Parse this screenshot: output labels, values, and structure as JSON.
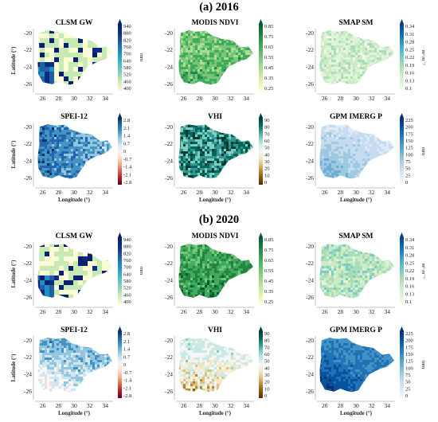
{
  "figure": {
    "sections": [
      {
        "label": "(a) 2016"
      },
      {
        "label": "(b) 2020"
      }
    ]
  },
  "chart_data": [
    {
      "year": "2016",
      "panels": [
        {
          "title": "CLSM GW",
          "type": "heatmap",
          "colorbar": {
            "ticks": [
              940,
              880,
              820,
              760,
              700,
              640,
              580,
              520,
              460,
              400
            ],
            "unit": "mm",
            "colors": [
              "#fbfbd6",
              "#c7e9b4",
              "#7fcdbb",
              "#41b6c4",
              "#1d91c0",
              "#225ea8",
              "#0c2c84",
              "#08206e"
            ]
          },
          "xlim": [
            25,
            35
          ],
          "ylim": [
            -27,
            -19.5
          ],
          "xticks": [
            26,
            28,
            30,
            32,
            34
          ],
          "yticks": [
            -20,
            -22,
            -24,
            -26
          ],
          "xlabel": "",
          "ylabel": "Latitude (°)"
        },
        {
          "title": "MODIS NDVI",
          "type": "heatmap",
          "colorbar": {
            "ticks": [
              0.85,
              0.75,
              0.65,
              0.55,
              0.45,
              0.35,
              0.25
            ],
            "unit": "",
            "colors": [
              "#ffffcc",
              "#d9f0a3",
              "#addd8e",
              "#78c679",
              "#41ab5d",
              "#238443",
              "#005a32"
            ]
          },
          "xlim": [
            25,
            35
          ],
          "ylim": [
            -27,
            -19.5
          ],
          "xticks": [
            26,
            28,
            30,
            32,
            34
          ],
          "yticks": [
            -20,
            -22,
            -24,
            -26
          ],
          "xlabel": "",
          "ylabel": ""
        },
        {
          "title": "SMAP SM",
          "type": "heatmap",
          "colorbar": {
            "ticks": [
              0.34,
              0.31,
              0.28,
              0.25,
              0.22,
              0.19,
              0.16,
              0.13,
              0.1
            ],
            "unit": "m³ m⁻³",
            "colors": [
              "#f7fcf0",
              "#e0f3db",
              "#ccebc5",
              "#a8ddb5",
              "#7bccc4",
              "#4eb3d3",
              "#2b8cbe",
              "#0868ac",
              "#084081"
            ]
          },
          "xlim": [
            25,
            35
          ],
          "ylim": [
            -27,
            -19.5
          ],
          "xticks": [
            26,
            28,
            30,
            32,
            34
          ],
          "yticks": [
            -20,
            -22,
            -24,
            -26
          ],
          "xlabel": "",
          "ylabel": ""
        },
        {
          "title": "SPEI-12",
          "type": "heatmap",
          "colorbar": {
            "ticks": [
              2.8,
              2.1,
              1.4,
              0.7,
              0.0,
              -0.7,
              -1.4,
              -2.1,
              -2.8
            ],
            "unit": "",
            "colors": [
              "#67001f",
              "#b2182b",
              "#d6604d",
              "#f4a582",
              "#fddbc7",
              "#f7f7f7",
              "#d1e5f0",
              "#92c5de",
              "#4393c3",
              "#2166ac",
              "#053061"
            ]
          },
          "xlim": [
            25,
            35
          ],
          "ylim": [
            -27,
            -19.5
          ],
          "xticks": [
            26,
            28,
            30,
            32,
            34
          ],
          "yticks": [
            -20,
            -22,
            -24,
            -26
          ],
          "xlabel": "Longitude (°)",
          "ylabel": "Latitude (°)"
        },
        {
          "title": "VHI",
          "type": "heatmap",
          "colorbar": {
            "ticks": [
              90,
              80,
              70,
              60,
              50,
              40,
              30,
              20,
              10,
              0
            ],
            "unit": "",
            "colors": [
              "#543005",
              "#8c510a",
              "#bf812d",
              "#dfc27d",
              "#f6e8c3",
              "#f5f5f5",
              "#c7eae5",
              "#80cdc1",
              "#35978f",
              "#01665e",
              "#003c30"
            ]
          },
          "xlim": [
            25,
            35
          ],
          "ylim": [
            -27,
            -19.5
          ],
          "xticks": [
            26,
            28,
            30,
            32,
            34
          ],
          "yticks": [
            -20,
            -22,
            -24,
            -26
          ],
          "xlabel": "Longitude (°)",
          "ylabel": ""
        },
        {
          "title": "GPM IMERG P",
          "type": "heatmap",
          "colorbar": {
            "ticks": [
              225,
              200,
              175,
              150,
              125,
              100,
              75,
              50,
              25,
              0
            ],
            "unit": "mm",
            "colors": [
              "#f7fbff",
              "#deebf7",
              "#c6dbef",
              "#9ecae1",
              "#6baed6",
              "#4292c6",
              "#2171b5",
              "#08519c",
              "#08306b"
            ]
          },
          "xlim": [
            25,
            35
          ],
          "ylim": [
            -27,
            -19.5
          ],
          "xticks": [
            26,
            28,
            30,
            32,
            34
          ],
          "yticks": [
            -20,
            -22,
            -24,
            -26
          ],
          "xlabel": "Longitude (°)",
          "ylabel": ""
        }
      ]
    },
    {
      "year": "2020",
      "panels": [
        {
          "title": "CLSM GW",
          "type": "heatmap",
          "colorbar": {
            "ticks": [
              940,
              880,
              820,
              760,
              700,
              640,
              580,
              520,
              460,
              400
            ],
            "unit": "mm",
            "colors": [
              "#fbfbd6",
              "#c7e9b4",
              "#7fcdbb",
              "#41b6c4",
              "#1d91c0",
              "#225ea8",
              "#0c2c84",
              "#08206e"
            ]
          },
          "xlim": [
            25,
            35
          ],
          "ylim": [
            -27,
            -19.5
          ],
          "xticks": [
            26,
            28,
            30,
            32,
            34
          ],
          "yticks": [
            -20,
            -22,
            -24,
            -26
          ],
          "xlabel": "",
          "ylabel": "Latitude (°)"
        },
        {
          "title": "MODIS NDVI",
          "type": "heatmap",
          "colorbar": {
            "ticks": [
              0.85,
              0.75,
              0.65,
              0.55,
              0.45,
              0.35,
              0.25
            ],
            "unit": "",
            "colors": [
              "#ffffcc",
              "#d9f0a3",
              "#addd8e",
              "#78c679",
              "#41ab5d",
              "#238443",
              "#005a32"
            ]
          },
          "xlim": [
            25,
            35
          ],
          "ylim": [
            -27,
            -19.5
          ],
          "xticks": [
            26,
            28,
            30,
            32,
            34
          ],
          "yticks": [
            -20,
            -22,
            -24,
            -26
          ],
          "xlabel": "",
          "ylabel": ""
        },
        {
          "title": "SMAP SM",
          "type": "heatmap",
          "colorbar": {
            "ticks": [
              0.34,
              0.31,
              0.28,
              0.25,
              0.22,
              0.19,
              0.16,
              0.13,
              0.1
            ],
            "unit": "m³ m⁻³",
            "colors": [
              "#f7fcf0",
              "#e0f3db",
              "#ccebc5",
              "#a8ddb5",
              "#7bccc4",
              "#4eb3d3",
              "#2b8cbe",
              "#0868ac",
              "#084081"
            ]
          },
          "xlim": [
            25,
            35
          ],
          "ylim": [
            -27,
            -19.5
          ],
          "xticks": [
            26,
            28,
            30,
            32,
            34
          ],
          "yticks": [
            -20,
            -22,
            -24,
            -26
          ],
          "xlabel": "",
          "ylabel": ""
        },
        {
          "title": "SPEI-12",
          "type": "heatmap",
          "colorbar": {
            "ticks": [
              2.8,
              2.1,
              1.4,
              0.7,
              0.0,
              -0.7,
              -1.4,
              -2.1,
              -2.8
            ],
            "unit": "",
            "colors": [
              "#67001f",
              "#b2182b",
              "#d6604d",
              "#f4a582",
              "#fddbc7",
              "#f7f7f7",
              "#d1e5f0",
              "#92c5de",
              "#4393c3",
              "#2166ac",
              "#053061"
            ]
          },
          "xlim": [
            25,
            35
          ],
          "ylim": [
            -27,
            -19.5
          ],
          "xticks": [
            26,
            28,
            30,
            32,
            34
          ],
          "yticks": [
            -20,
            -22,
            -24,
            -26
          ],
          "xlabel": "Longitude (°)",
          "ylabel": "Latitude (°)"
        },
        {
          "title": "VHI",
          "type": "heatmap",
          "colorbar": {
            "ticks": [
              90,
              80,
              70,
              60,
              50,
              40,
              30,
              20,
              10,
              0
            ],
            "unit": "",
            "colors": [
              "#543005",
              "#8c510a",
              "#bf812d",
              "#dfc27d",
              "#f6e8c3",
              "#f5f5f5",
              "#c7eae5",
              "#80cdc1",
              "#35978f",
              "#01665e",
              "#003c30"
            ]
          },
          "xlim": [
            25,
            35
          ],
          "ylim": [
            -27,
            -19.5
          ],
          "xticks": [
            26,
            28,
            30,
            32,
            34
          ],
          "yticks": [
            -20,
            -22,
            -24,
            -26
          ],
          "xlabel": "Longitude (°)",
          "ylabel": ""
        },
        {
          "title": "GPM IMERG P",
          "type": "heatmap",
          "colorbar": {
            "ticks": [
              225,
              200,
              175,
              150,
              125,
              100,
              75,
              50,
              25,
              0
            ],
            "unit": "mm",
            "colors": [
              "#f7fbff",
              "#deebf7",
              "#c6dbef",
              "#9ecae1",
              "#6baed6",
              "#4292c6",
              "#2171b5",
              "#08519c",
              "#08306b"
            ]
          },
          "xlim": [
            25,
            35
          ],
          "ylim": [
            -27,
            -19.5
          ],
          "xticks": [
            26,
            28,
            30,
            32,
            34
          ],
          "yticks": [
            -20,
            -22,
            -24,
            -26
          ],
          "xlabel": "Longitude (°)",
          "ylabel": ""
        }
      ]
    }
  ]
}
